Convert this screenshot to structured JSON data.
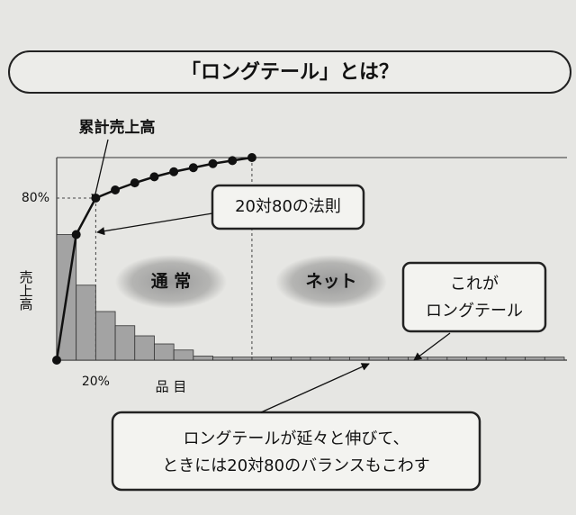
{
  "chart_data": {
    "type": "bar",
    "title": "「ロングテール」とは？",
    "y_label": "売上高",
    "x_label": "品 目",
    "categories": [
      null,
      null,
      null,
      null,
      null,
      null,
      null,
      null,
      null,
      null,
      null,
      null,
      null,
      null,
      null,
      null,
      null,
      null,
      null,
      null,
      null,
      null,
      null,
      null,
      null,
      null
    ],
    "values": [
      62,
      37,
      24,
      17,
      12,
      8,
      5,
      2,
      1.5,
      1.5,
      1.5,
      1.5,
      1.5,
      1.5,
      1.5,
      1.5,
      1.5,
      1.5,
      1.5,
      1.5,
      1.5,
      1.5,
      1.5,
      1.5,
      1.5,
      1.5
    ],
    "color": "#a3a3a3",
    "cumulative": {
      "name": "累計売上高",
      "color": "#111111",
      "values": [
        0,
        62,
        80,
        84,
        87.5,
        90.5,
        93,
        95,
        97,
        98.5,
        100
      ]
    },
    "ylim": [
      0,
      100
    ],
    "yticks": [
      {
        "value": 80,
        "label": "80%"
      }
    ],
    "xticks": [
      {
        "value": 2,
        "label": "20%"
      }
    ],
    "annotations": [
      "20対80の法則",
      "通 常",
      "ネット",
      "これが",
      "ロングテール",
      "ロングテールが延々と伸びて、",
      "ときには20対80のバランスもこわす"
    ]
  }
}
